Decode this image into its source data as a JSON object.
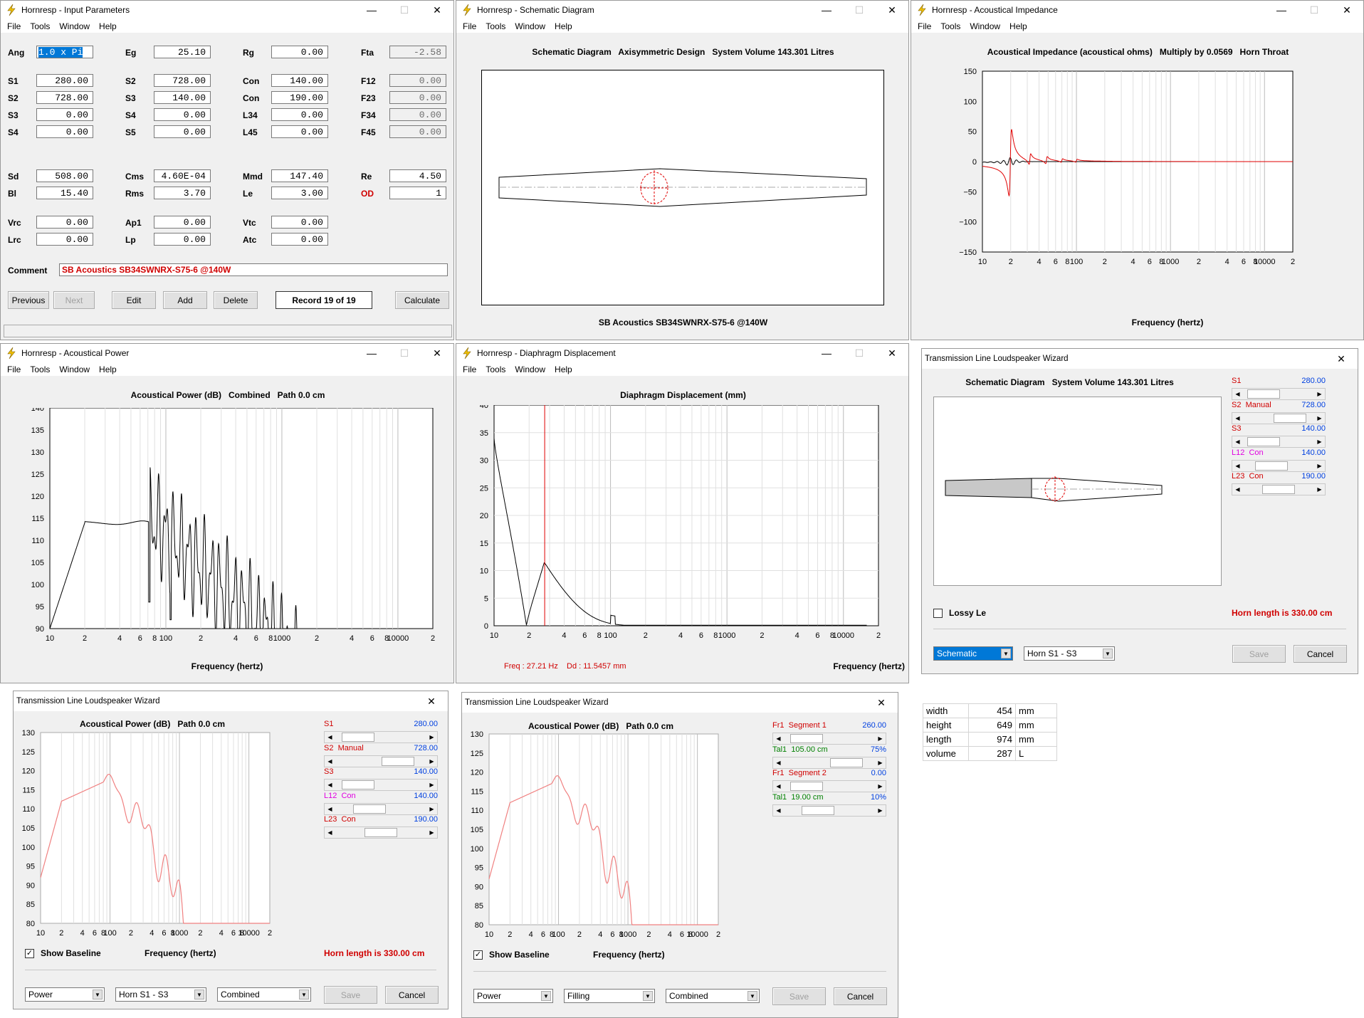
{
  "input": {
    "title": "Hornresp - Input Parameters",
    "menu": [
      "File",
      "Tools",
      "Window",
      "Help"
    ],
    "fields": [
      {
        "l": "Ang",
        "v": "1.0 x Pi",
        "sel": true
      },
      {
        "l": "Eg",
        "v": "25.10"
      },
      {
        "l": "Rg",
        "v": "0.00"
      },
      {
        "l": "Fta",
        "v": "-2.58",
        "ro": true
      },
      {
        "l": "S1",
        "v": "280.00"
      },
      {
        "l": "S2",
        "v": "728.00"
      },
      {
        "l": "Con",
        "v": "140.00"
      },
      {
        "l": "F12",
        "v": "0.00",
        "ro": true
      },
      {
        "l": "S2",
        "v": "728.00"
      },
      {
        "l": "S3",
        "v": "140.00"
      },
      {
        "l": "Con",
        "v": "190.00"
      },
      {
        "l": "F23",
        "v": "0.00",
        "ro": true
      },
      {
        "l": "S3",
        "v": "0.00"
      },
      {
        "l": "S4",
        "v": "0.00"
      },
      {
        "l": "L34",
        "v": "0.00"
      },
      {
        "l": "F34",
        "v": "0.00",
        "ro": true
      },
      {
        "l": "S4",
        "v": "0.00"
      },
      {
        "l": "S5",
        "v": "0.00"
      },
      {
        "l": "L45",
        "v": "0.00"
      },
      {
        "l": "F45",
        "v": "0.00",
        "ro": true
      },
      {
        "l": "Sd",
        "v": "508.00"
      },
      {
        "l": "Cms",
        "v": "4.60E-04"
      },
      {
        "l": "Mmd",
        "v": "147.40"
      },
      {
        "l": "Re",
        "v": "4.50"
      },
      {
        "l": "Bl",
        "v": "15.40"
      },
      {
        "l": "Rms",
        "v": "3.70"
      },
      {
        "l": "Le",
        "v": "3.00"
      },
      {
        "l": "OD",
        "v": "1",
        "red": true
      },
      {
        "l": "Vrc",
        "v": "0.00"
      },
      {
        "l": "Ap1",
        "v": "0.00"
      },
      {
        "l": "Vtc",
        "v": "0.00"
      },
      {
        "l": "",
        "v": ""
      },
      {
        "l": "Lrc",
        "v": "0.00"
      },
      {
        "l": "Lp",
        "v": "0.00"
      },
      {
        "l": "Atc",
        "v": "0.00"
      },
      {
        "l": "",
        "v": ""
      }
    ],
    "comment_label": "Comment",
    "comment": "SB Acoustics SB34SWNRX-S75-6 @140W",
    "buttons": [
      "Previous",
      "Next",
      "Edit",
      "Add",
      "Delete",
      "Calculate"
    ],
    "record": "Record 19 of 19"
  },
  "schematic": {
    "title": "Hornresp - Schematic Diagram",
    "menu": [
      "File",
      "Tools",
      "Window",
      "Help"
    ],
    "heading": "Schematic Diagram   Axisymmetric Design   System Volume 143.301 Litres",
    "footer": "SB Acoustics SB34SWNRX-S75-6 @140W"
  },
  "impedance": {
    "title": "Hornresp - Acoustical Impedance",
    "menu": [
      "File",
      "Tools",
      "Window",
      "Help"
    ],
    "heading": "Acoustical Impedance (acoustical ohms)   Multiply by 0.0569   Horn Throat",
    "xlabel": "Frequency (hertz)",
    "yticks": [
      "150",
      "100",
      "50",
      "0",
      "−50",
      "−100",
      "−150"
    ]
  },
  "power": {
    "title": "Hornresp - Acoustical Power",
    "menu": [
      "File",
      "Tools",
      "Window",
      "Help"
    ],
    "heading": "Acoustical Power (dB)   Combined   Path 0.0 cm",
    "xlabel": "Frequency (hertz)",
    "yticks": [
      "140",
      "135",
      "130",
      "125",
      "120",
      "115",
      "110",
      "105",
      "100",
      "95",
      "90"
    ]
  },
  "displacement": {
    "title": "Hornresp - Diaphragm Displacement",
    "menu": [
      "File",
      "Tools",
      "Window",
      "Help"
    ],
    "heading": "Diaphragm Displacement (mm)",
    "xlabel": "Frequency (hertz)",
    "freq": "Freq : 27.21 Hz",
    "dd": "Dd : 11.5457 mm",
    "yticks": [
      "40",
      "35",
      "30",
      "25",
      "20",
      "15",
      "10",
      "5",
      "0"
    ]
  },
  "xticks": [
    "10",
    "2",
    "4",
    "6",
    "8",
    "100",
    "2",
    "4",
    "6",
    "8",
    "1000",
    "2",
    "4",
    "6",
    "8",
    "10000",
    "2"
  ],
  "wiz1": {
    "title": "Transmission Line Loudspeaker Wizard",
    "heading": "Schematic Diagram   System Volume 143.301 Litres",
    "sliders": [
      {
        "l": "S1",
        "s": "",
        "v": "280.00",
        "c": "#d00000",
        "sc": "#d00000"
      },
      {
        "l": "S2",
        "s": "Manual",
        "v": "728.00",
        "c": "#d00000",
        "sc": "#d00000"
      },
      {
        "l": "S3",
        "s": "",
        "v": "140.00",
        "c": "#d00000",
        "sc": "#d00000"
      },
      {
        "l": "L12",
        "s": "Con",
        "v": "140.00",
        "c": "#e000e0",
        "sc": "#e000e0"
      },
      {
        "l": "L23",
        "s": "Con",
        "v": "190.00",
        "c": "#d00000",
        "sc": "#d00000"
      }
    ],
    "lossy": "Lossy Le",
    "hornlen": "Horn length is 330.00 cm",
    "dd1": "Schematic",
    "dd2": "Horn S1 - S3",
    "save": "Save",
    "cancel": "Cancel"
  },
  "wiz2": {
    "title": "Transmission Line Loudspeaker Wizard",
    "heading": "Acoustical Power (dB)   Path 0.0 cm",
    "xlabel": "Frequency (hertz)",
    "sliders": [
      {
        "l": "S1",
        "s": "",
        "v": "280.00",
        "c": "#d00000",
        "sc": "#d00000"
      },
      {
        "l": "S2",
        "s": "Manual",
        "v": "728.00",
        "c": "#d00000",
        "sc": "#d00000"
      },
      {
        "l": "S3",
        "s": "",
        "v": "140.00",
        "c": "#d00000",
        "sc": "#d00000"
      },
      {
        "l": "L12",
        "s": "Con",
        "v": "140.00",
        "c": "#e000e0",
        "sc": "#e000e0"
      },
      {
        "l": "L23",
        "s": "Con",
        "v": "190.00",
        "c": "#d00000",
        "sc": "#d00000"
      }
    ],
    "baseline": "Show Baseline",
    "hornlen": "Horn length is 330.00 cm",
    "dd1": "Power",
    "dd2": "Horn S1 - S3",
    "dd3": "Combined",
    "save": "Save",
    "cancel": "Cancel",
    "yticks": [
      "130",
      "125",
      "120",
      "115",
      "110",
      "105",
      "100",
      "95",
      "90",
      "85",
      "80"
    ]
  },
  "wiz3": {
    "title": "Transmission Line Loudspeaker Wizard",
    "heading": "Acoustical Power (dB)   Path 0.0 cm",
    "xlabel": "Frequency (hertz)",
    "sliders": [
      {
        "l": "Fr1",
        "s": "Segment 1",
        "v": "260.00",
        "c": "#d00000",
        "sc": "#d00000"
      },
      {
        "l": "Tal1",
        "s": "105.00 cm",
        "v": "75%",
        "c": "#008000",
        "sc": "#008000"
      },
      {
        "l": "Fr1",
        "s": "Segment 2",
        "v": "0.00",
        "c": "#d00000",
        "sc": "#d00000"
      },
      {
        "l": "Tal1",
        "s": "19.00 cm",
        "v": "10%",
        "c": "#008000",
        "sc": "#008000"
      }
    ],
    "baseline": "Show Baseline",
    "dd1": "Power",
    "dd2": "Filling",
    "dd3": "Combined",
    "save": "Save",
    "cancel": "Cancel",
    "yticks": [
      "130",
      "125",
      "120",
      "115",
      "110",
      "105",
      "100",
      "95",
      "90",
      "85",
      "80"
    ]
  },
  "dims": [
    {
      "k": "width",
      "v": "454",
      "u": "mm"
    },
    {
      "k": "height",
      "v": "649",
      "u": "mm"
    },
    {
      "k": "length",
      "v": "974",
      "u": "mm"
    },
    {
      "k": "volume",
      "v": "287",
      "u": "L"
    }
  ],
  "colors": {
    "trace_red": "#e00000",
    "trace_pink": "#f08080",
    "value_blue": "#0040e0"
  }
}
